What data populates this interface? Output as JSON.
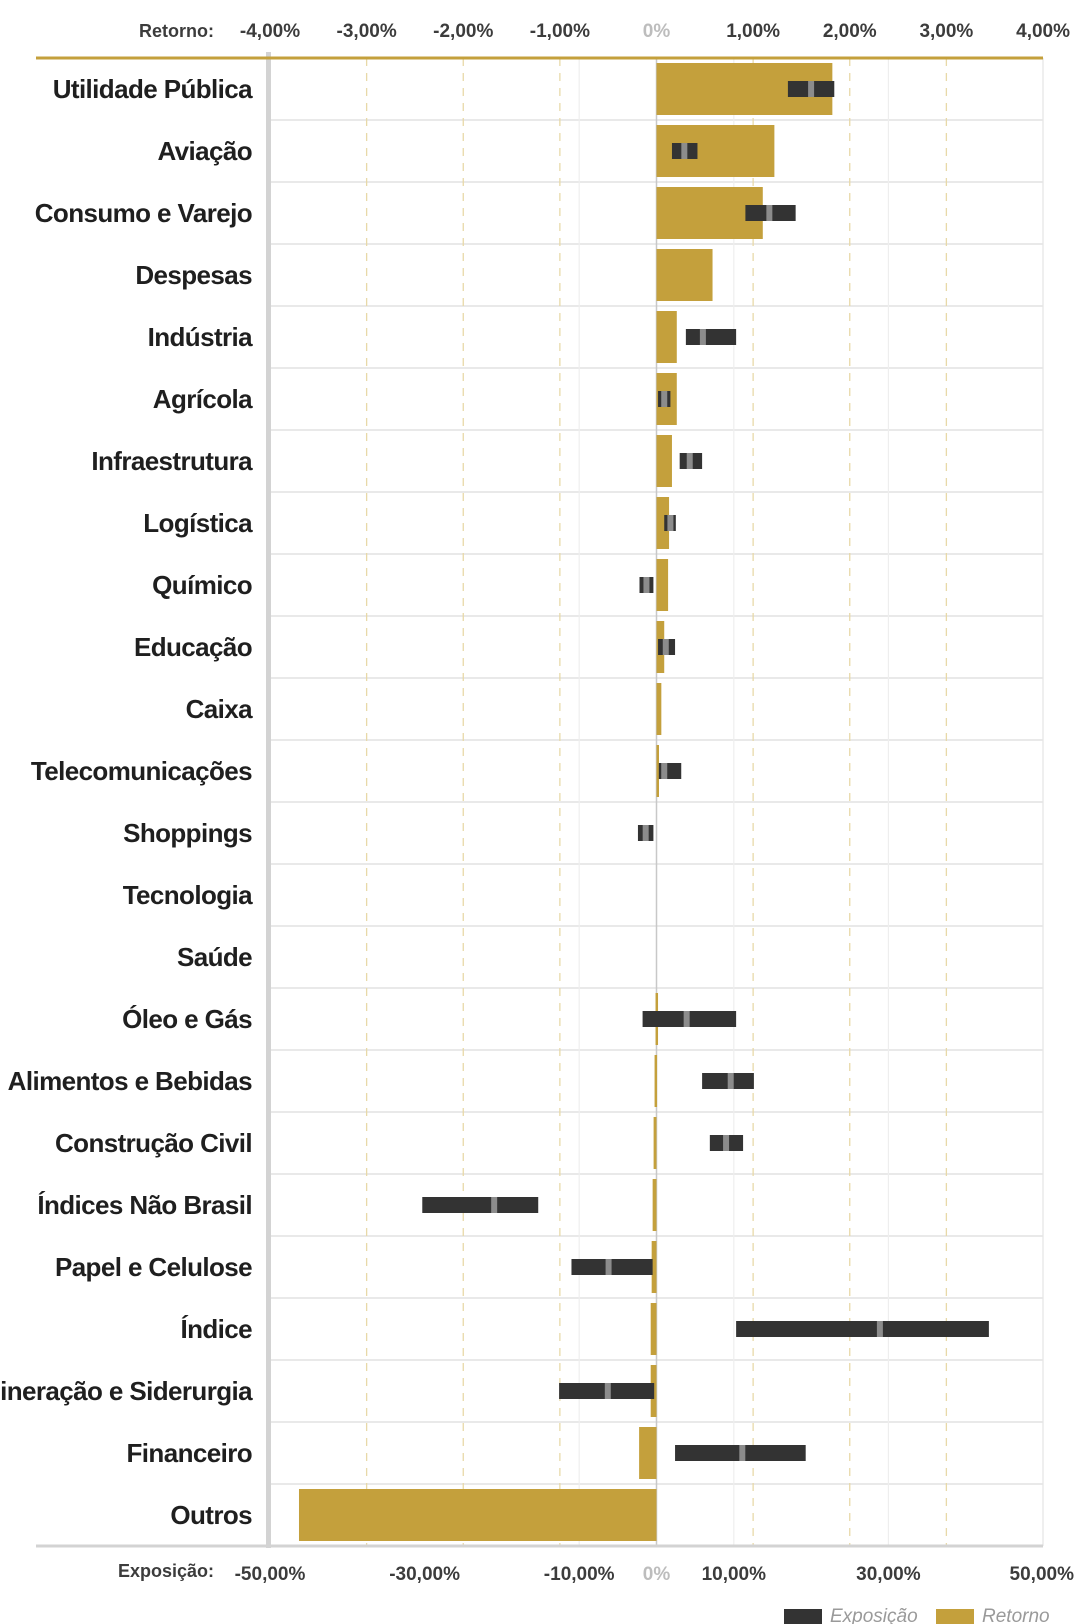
{
  "chart_data": {
    "type": "bar",
    "top_axis": {
      "caption": "Retorno:",
      "ticks": [
        "-4,00%",
        "-3,00%",
        "-2,00%",
        "-1,00%",
        "0%",
        "1,00%",
        "2,00%",
        "3,00%",
        "4,00%"
      ],
      "range": [
        -4,
        4
      ]
    },
    "bottom_axis": {
      "caption": "Exposição:",
      "ticks": [
        "-50,00%",
        "-30,00%",
        "-10,00%",
        "0%",
        "10,00%",
        "30,00%",
        "50,00%"
      ],
      "range": [
        -50,
        50
      ]
    },
    "categories": [
      "Utilidade Pública",
      "Aviação",
      "Consumo e Varejo",
      "Despesas",
      "Indústria",
      "Agrícola",
      "Infraestrutura",
      "Logística",
      "Químico",
      "Educação",
      "Caixa",
      "Telecomunicações",
      "Shoppings",
      "Tecnologia",
      "Saúde",
      "Óleo e Gás",
      "Alimentos e Bebidas",
      "Construção Civil",
      "Índices Não Brasil",
      "Papel e Celulose",
      "Índice",
      "Mineração e Siderurgia",
      "Financeiro",
      "Outros"
    ],
    "series": [
      {
        "name": "Retorno",
        "color": "#c4a03c",
        "values": [
          1.82,
          1.22,
          1.1,
          0.58,
          0.21,
          0.21,
          0.16,
          0.13,
          0.12,
          0.08,
          0.05,
          0.02,
          0.0,
          0.0,
          0.0,
          -0.01,
          -0.02,
          -0.03,
          -0.04,
          -0.05,
          -0.06,
          -0.06,
          -0.18,
          -3.7
        ]
      },
      {
        "name": "Exposição",
        "color": "#333333",
        "ranges": [
          [
            17,
            23
          ],
          [
            2,
            5.3
          ],
          [
            11.5,
            18
          ],
          null,
          [
            3.8,
            10.3
          ],
          [
            0.2,
            1.8
          ],
          [
            3,
            5.9
          ],
          [
            1,
            2.5
          ],
          [
            -2.2,
            -0.4
          ],
          [
            0.2,
            2.4
          ],
          null,
          [
            0.3,
            3.2
          ],
          [
            -2.4,
            -0.4
          ],
          null,
          null,
          [
            -1.8,
            10.3
          ],
          [
            5.9,
            12.6
          ],
          [
            6.9,
            11.2
          ],
          [
            -30.3,
            -15.3
          ],
          [
            -11,
            -0.5
          ],
          [
            10.3,
            43
          ],
          [
            -12.6,
            -0.3
          ],
          [
            2.4,
            19.3
          ],
          null
        ],
        "markers": [
          20,
          3.6,
          14.6,
          null,
          6,
          1,
          4.3,
          1.8,
          -1.3,
          1.2,
          null,
          1,
          -1.4,
          null,
          null,
          3.9,
          9.6,
          9,
          -21,
          -6.2,
          28.9,
          -6.3,
          11.1,
          null
        ]
      }
    ],
    "grid": true,
    "legend_position": "bottom-right"
  }
}
